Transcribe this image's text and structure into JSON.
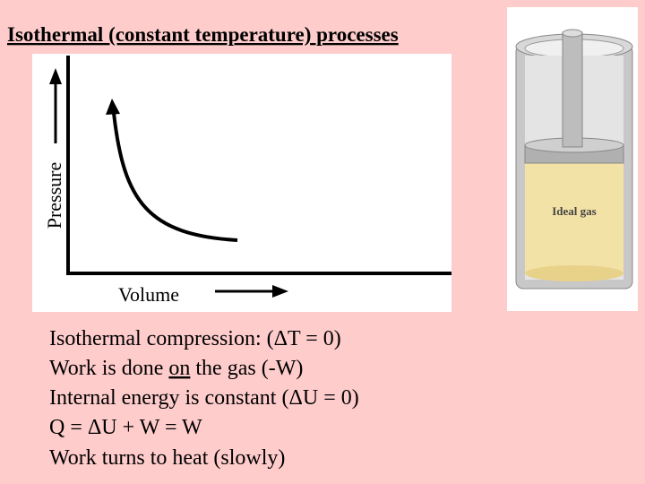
{
  "title": "Isothermal (constant temperature) processes",
  "diagram": {
    "y_axis_label": "Pressure",
    "x_axis_label": "Volume",
    "cylinder_label": "Ideal gas"
  },
  "body": {
    "line1": "Isothermal compression: (ΔT = 0)",
    "line2": {
      "before": "Work is done ",
      "emphasis": "on",
      "after": " the gas (-W)"
    },
    "line3": "Internal energy is constant (ΔU = 0)",
    "line4": "Q = ΔU + W = W",
    "line5": "Work turns to heat (slowly)"
  }
}
